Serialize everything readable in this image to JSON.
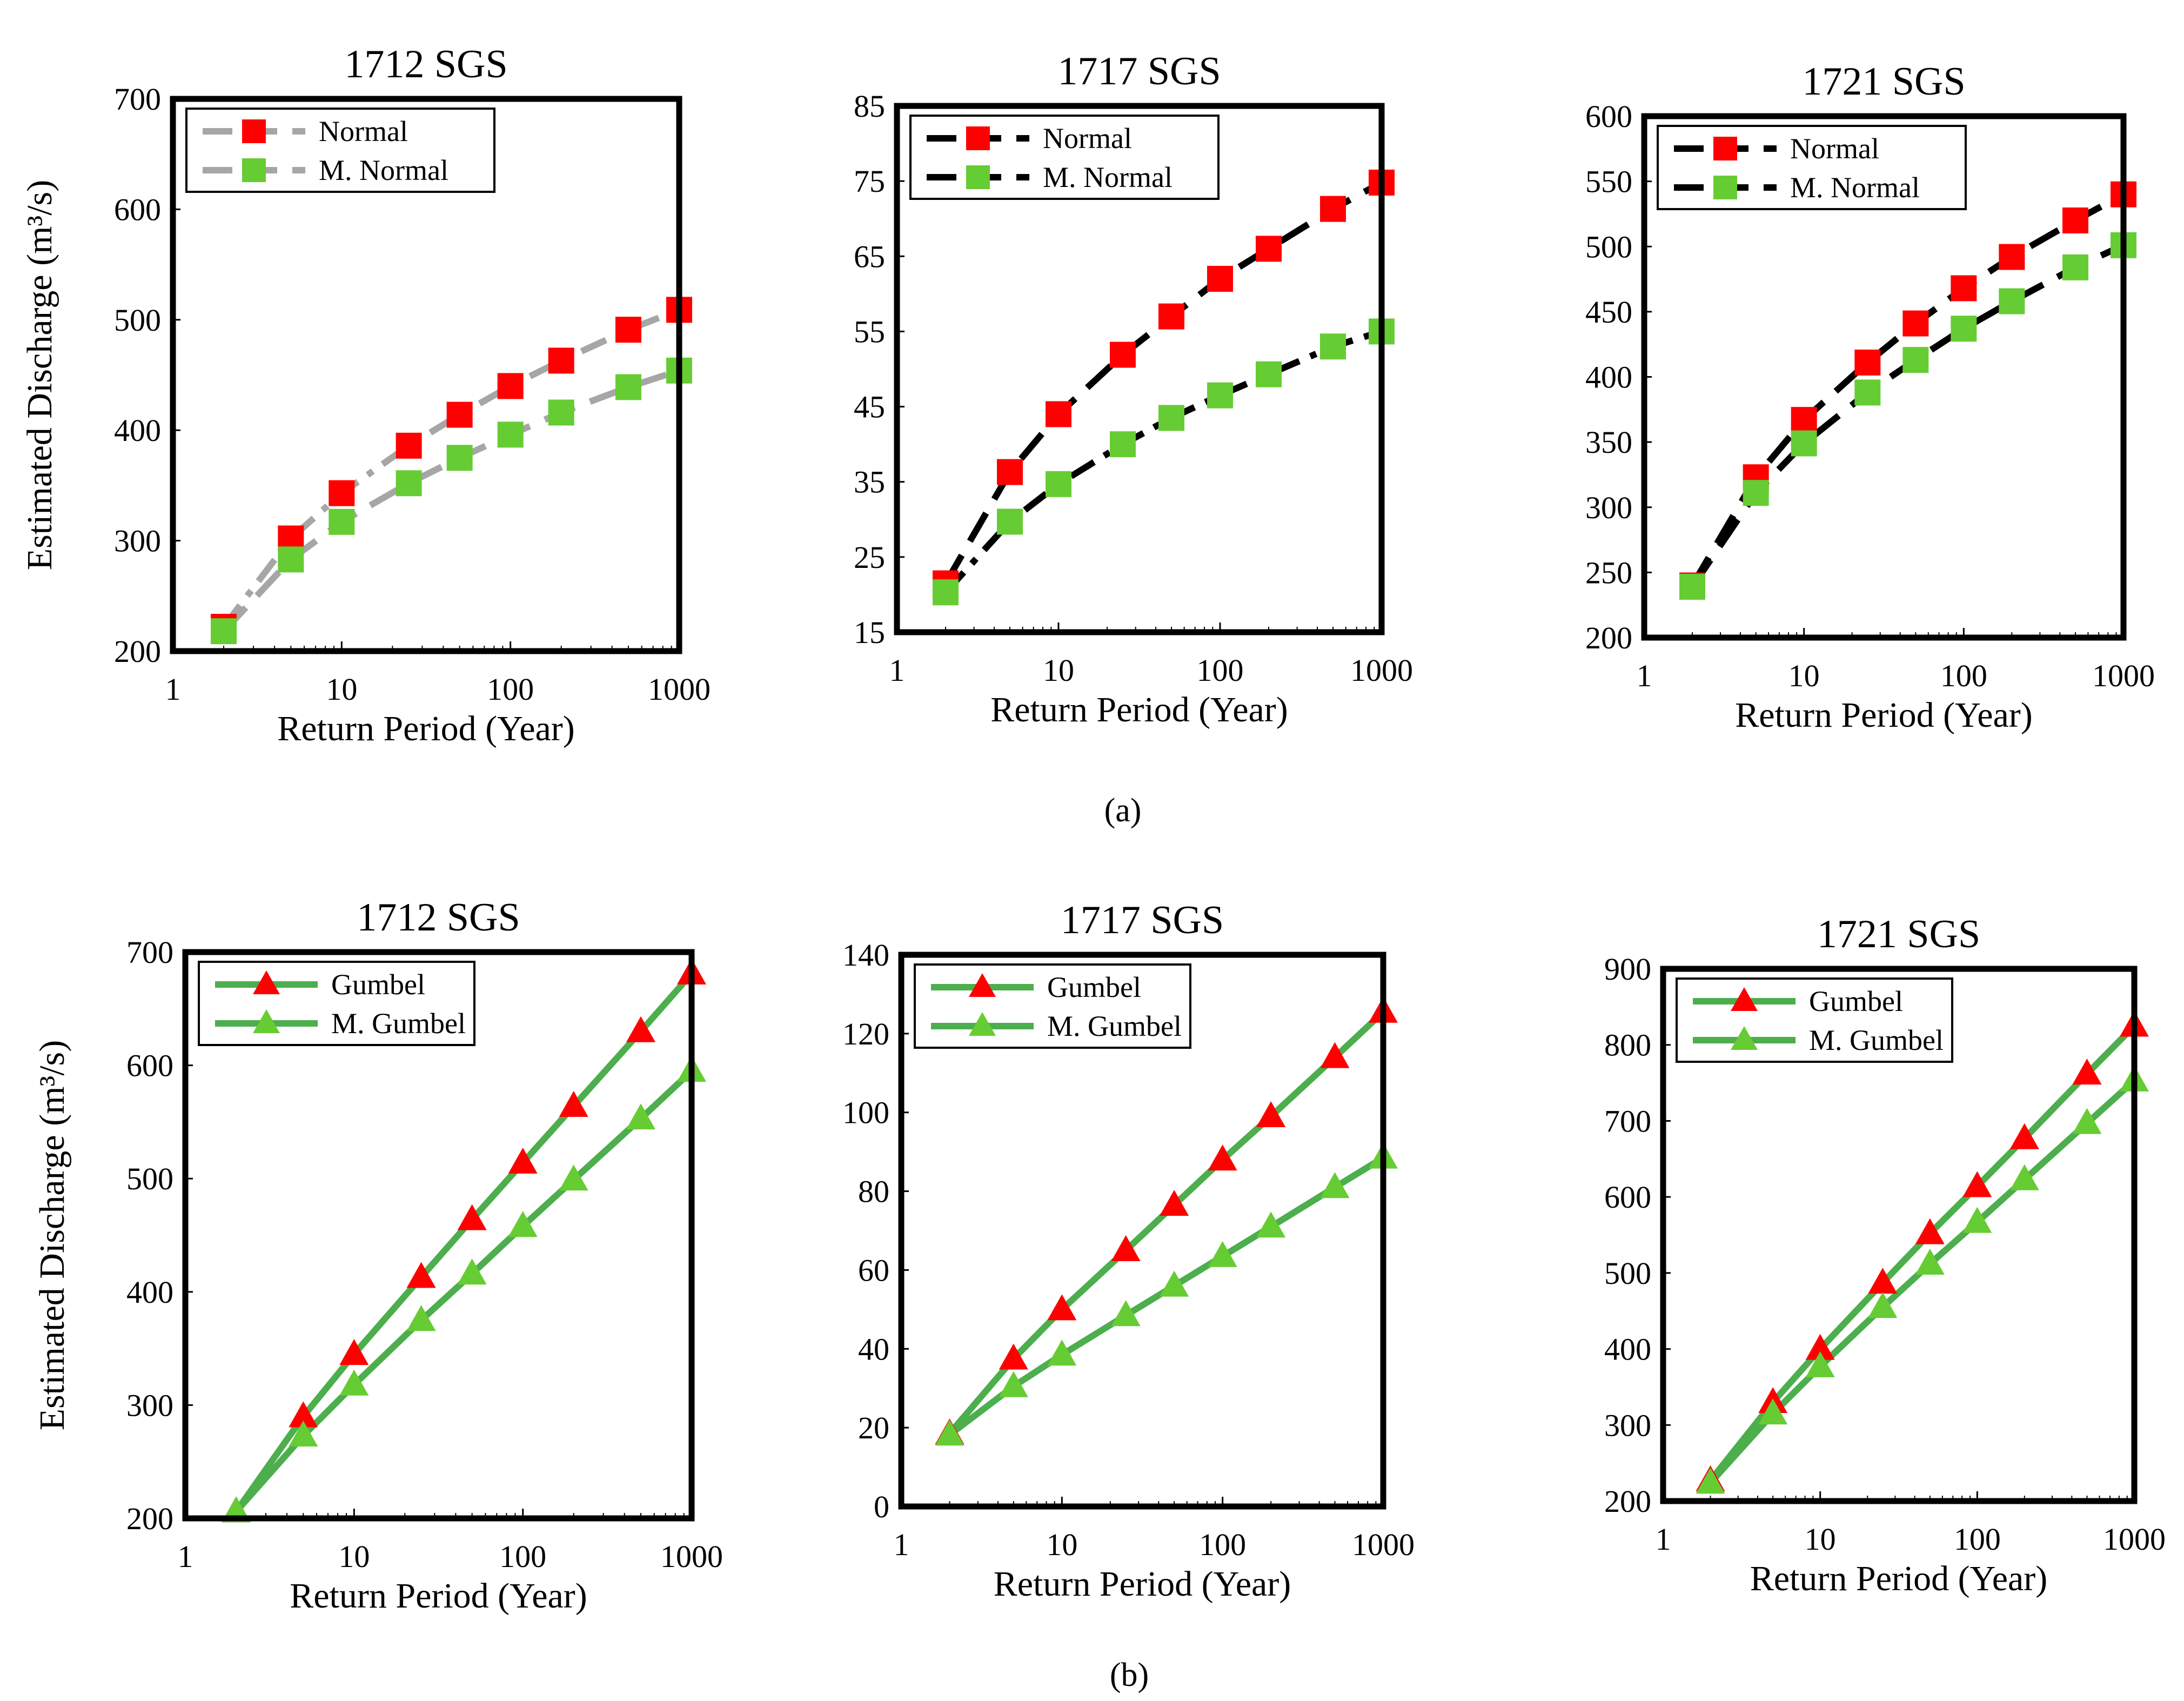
{
  "figure": {
    "panel_labels": [
      "(a)",
      "(b)"
    ]
  },
  "chart_data": [
    {
      "type": "line",
      "panel": "a",
      "title": "1712 SGS",
      "xlabel": "Return Period (Year)",
      "ylabel": "Estimated Discharge (m³/s)",
      "x_scale": "log",
      "xlim": [
        1,
        1000
      ],
      "xticks": [
        "1",
        "10",
        "100",
        "1000"
      ],
      "ylim": [
        200,
        700
      ],
      "yticks": [
        "200",
        "300",
        "400",
        "500",
        "600",
        "700"
      ],
      "legend_position": "top-left",
      "x": [
        2,
        5,
        10,
        25,
        50,
        100,
        200,
        500,
        1000
      ],
      "series": [
        {
          "name": "Normal",
          "marker": "square",
          "marker_color": "#ff0000",
          "line_color": "#a6a6a6",
          "line_style": "dash-dot",
          "values": [
            222,
            302,
            343,
            386,
            414,
            440,
            463,
            491,
            509
          ]
        },
        {
          "name": "M. Normal",
          "marker": "square",
          "marker_color": "#66cc33",
          "line_color": "#a6a6a6",
          "line_style": "long-dash",
          "values": [
            218,
            283,
            317,
            352,
            375,
            396,
            416,
            439,
            454
          ]
        }
      ]
    },
    {
      "type": "line",
      "panel": "a",
      "title": "1717 SGS",
      "xlabel": "Return Period (Year)",
      "ylabel": "",
      "x_scale": "log",
      "xlim": [
        1,
        1000
      ],
      "xticks": [
        "1",
        "10",
        "100",
        "1000"
      ],
      "ylim": [
        15,
        85
      ],
      "yticks": [
        "15",
        "25",
        "35",
        "45",
        "55",
        "65",
        "75",
        "85"
      ],
      "legend_position": "top-left",
      "x": [
        2,
        5,
        10,
        25,
        50,
        100,
        200,
        500,
        1000
      ],
      "series": [
        {
          "name": "Normal",
          "marker": "square",
          "marker_color": "#ff0000",
          "line_color": "#000000",
          "line_style": "long-dash",
          "values": [
            21.5,
            36.3,
            44,
            51.9,
            57,
            62,
            66,
            71.3,
            74.8
          ]
        },
        {
          "name": "M. Normal",
          "marker": "square",
          "marker_color": "#66cc33",
          "line_color": "#000000",
          "line_style": "dash-dot",
          "values": [
            20.3,
            29.7,
            34.7,
            40,
            43.5,
            46.5,
            49.3,
            53,
            55
          ]
        }
      ]
    },
    {
      "type": "line",
      "panel": "a",
      "title": "1721 SGS",
      "xlabel": "Return Period (Year)",
      "ylabel": "",
      "x_scale": "log",
      "xlim": [
        1,
        1000
      ],
      "xticks": [
        "1",
        "10",
        "100",
        "1000"
      ],
      "ylim": [
        200,
        600
      ],
      "yticks": [
        "200",
        "250",
        "300",
        "350",
        "400",
        "450",
        "500",
        "550",
        "600"
      ],
      "legend_position": "top-left",
      "x": [
        2,
        5,
        10,
        25,
        50,
        100,
        200,
        500,
        1000
      ],
      "series": [
        {
          "name": "Normal",
          "marker": "square",
          "marker_color": "#ff0000",
          "line_color": "#000000",
          "line_style": "long-dash",
          "values": [
            240,
            323,
            367,
            411,
            441,
            468,
            492,
            520,
            540
          ]
        },
        {
          "name": "M. Normal",
          "marker": "square",
          "marker_color": "#66cc33",
          "line_color": "#000000",
          "line_style": "long-dash",
          "values": [
            239,
            311,
            349,
            388,
            413,
            437,
            458,
            484,
            501
          ]
        }
      ]
    },
    {
      "type": "line",
      "panel": "b",
      "title": "1712 SGS",
      "xlabel": "Return Period (Year)",
      "ylabel": "Estimated Discharge (m³/s)",
      "x_scale": "log",
      "xlim": [
        1,
        1000
      ],
      "xticks": [
        "1",
        "10",
        "100",
        "1000"
      ],
      "ylim": [
        200,
        700
      ],
      "yticks": [
        "200",
        "300",
        "400",
        "500",
        "600",
        "700"
      ],
      "legend_position": "top-left",
      "x": [
        2,
        5,
        10,
        25,
        50,
        100,
        200,
        500,
        1000
      ],
      "series": [
        {
          "name": "Gumbel",
          "marker": "triangle",
          "marker_color": "#ff0000",
          "line_color": "#4cae4c",
          "line_style": "solid",
          "values": [
            206,
            290,
            345,
            413,
            464,
            514,
            564,
            630,
            681
          ]
        },
        {
          "name": "M. Gumbel",
          "marker": "triangle",
          "marker_color": "#66cc33",
          "line_color": "#4cae4c",
          "line_style": "solid",
          "values": [
            206,
            273,
            318,
            375,
            416,
            458,
            499,
            553,
            595
          ]
        }
      ]
    },
    {
      "type": "line",
      "panel": "b",
      "title": "1717 SGS",
      "xlabel": "Return Period (Year)",
      "ylabel": "",
      "x_scale": "log",
      "xlim": [
        1,
        1000
      ],
      "xticks": [
        "1",
        "10",
        "100",
        "1000"
      ],
      "ylim": [
        0,
        140
      ],
      "yticks": [
        "0",
        "20",
        "40",
        "60",
        "80",
        "100",
        "120",
        "140"
      ],
      "legend_position": "top-left",
      "x": [
        2,
        5,
        10,
        25,
        50,
        100,
        200,
        500,
        1000
      ],
      "series": [
        {
          "name": "Gumbel",
          "marker": "triangle",
          "marker_color": "#ff0000",
          "line_color": "#4cae4c",
          "line_style": "solid",
          "values": [
            18.5,
            37.5,
            50,
            65,
            76.5,
            88,
            99,
            114,
            125.5
          ]
        },
        {
          "name": "M. Gumbel",
          "marker": "triangle",
          "marker_color": "#66cc33",
          "line_color": "#4cae4c",
          "line_style": "solid",
          "values": [
            18.2,
            30.5,
            38.5,
            48.5,
            56,
            63.5,
            71,
            81,
            88.5
          ]
        }
      ]
    },
    {
      "type": "line",
      "panel": "b",
      "title": "1721 SGS",
      "xlabel": "Return Period (Year)",
      "ylabel": "",
      "x_scale": "log",
      "xlim": [
        1,
        1000
      ],
      "xticks": [
        "1",
        "10",
        "100",
        "1000"
      ],
      "ylim": [
        200,
        900
      ],
      "yticks": [
        "200",
        "300",
        "400",
        "500",
        "600",
        "700",
        "800",
        "900"
      ],
      "legend_position": "top-left",
      "x": [
        2,
        5,
        10,
        25,
        50,
        100,
        200,
        500,
        1000
      ],
      "series": [
        {
          "name": "Gumbel",
          "marker": "triangle",
          "marker_color": "#ff0000",
          "line_color": "#4cae4c",
          "line_style": "solid",
          "values": [
            227,
            330,
            400,
            487,
            552,
            614,
            677,
            762,
            825
          ]
        },
        {
          "name": "M. Gumbel",
          "marker": "triangle",
          "marker_color": "#66cc33",
          "line_color": "#4cae4c",
          "line_style": "solid",
          "values": [
            224,
            315,
            377,
            455,
            512,
            567,
            623,
            697,
            753
          ]
        }
      ]
    }
  ]
}
